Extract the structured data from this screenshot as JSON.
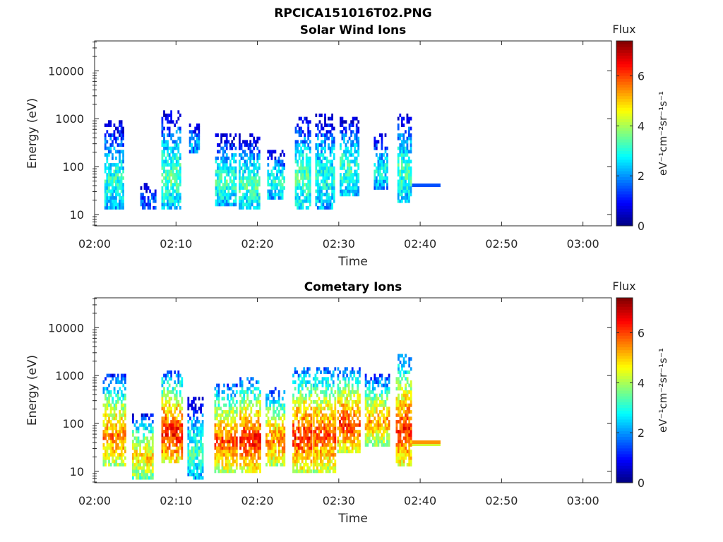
{
  "figure": {
    "title": "RPCICA151016T02.PNG"
  },
  "chart_data": [
    {
      "type": "heatmap",
      "title": "Solar Wind Ions",
      "xlabel": "Time",
      "ylabel": "Energy (eV)",
      "x_ticks": [
        "02:00",
        "02:10",
        "02:20",
        "02:30",
        "02:40",
        "02:50",
        "03:00"
      ],
      "y_ticks": [
        "10",
        "100",
        "1000",
        "10000"
      ],
      "y_scale": "log",
      "ylim": [
        5.8,
        42000
      ],
      "xlim_minutes": [
        0,
        63.5
      ],
      "colorbar": {
        "label": "Flux",
        "units": "eV⁻¹cm⁻²sr⁻¹s⁻¹",
        "ticks": [
          "0",
          "2",
          "4",
          "6"
        ],
        "range": [
          0,
          7.4
        ],
        "colormap": "jet"
      },
      "legend": "none",
      "grid": false,
      "bursts": [
        {
          "t_start": 1.2,
          "t_end": 3.6,
          "e_low": 12,
          "e_high": 800,
          "flux_peak": 3.1
        },
        {
          "t_start": 5.6,
          "t_end": 7.4,
          "e_low": 12,
          "e_high": 40,
          "flux_peak": 1.6
        },
        {
          "t_start": 8.2,
          "t_end": 10.6,
          "e_low": 12,
          "e_high": 1300,
          "flux_peak": 3.4
        },
        {
          "t_start": 11.6,
          "t_end": 12.8,
          "e_low": 200,
          "e_high": 700,
          "flux_peak": 2.5
        },
        {
          "t_start": 14.8,
          "t_end": 17.3,
          "e_low": 15,
          "e_high": 400,
          "flux_peak": 3.2
        },
        {
          "t_start": 17.7,
          "t_end": 20.2,
          "e_low": 12,
          "e_high": 400,
          "flux_peak": 3.3
        },
        {
          "t_start": 21.2,
          "t_end": 23.2,
          "e_low": 20,
          "e_high": 200,
          "flux_peak": 3.0
        },
        {
          "t_start": 24.6,
          "t_end": 26.4,
          "e_low": 12,
          "e_high": 1000,
          "flux_peak": 3.4
        },
        {
          "t_start": 27.1,
          "t_end": 29.4,
          "e_low": 12,
          "e_high": 1200,
          "flux_peak": 3.0
        },
        {
          "t_start": 30.1,
          "t_end": 32.3,
          "e_low": 25,
          "e_high": 1000,
          "flux_peak": 3.2
        },
        {
          "t_start": 34.3,
          "t_end": 36.0,
          "e_low": 35,
          "e_high": 400,
          "flux_peak": 2.9
        },
        {
          "t_start": 37.2,
          "t_end": 38.8,
          "e_low": 18,
          "e_high": 1100,
          "flux_peak": 3.3
        }
      ],
      "band": {
        "t_start": 39.0,
        "t_end": 42.5,
        "energy": 40,
        "flux": 1.5
      }
    },
    {
      "type": "heatmap",
      "title": "Cometary Ions",
      "xlabel": "Time",
      "ylabel": "Energy (eV)",
      "x_ticks": [
        "02:00",
        "02:10",
        "02:20",
        "02:30",
        "02:40",
        "02:50",
        "03:00"
      ],
      "y_ticks": [
        "10",
        "100",
        "1000",
        "10000"
      ],
      "y_scale": "log",
      "ylim": [
        5.8,
        42000
      ],
      "xlim_minutes": [
        0,
        63.5
      ],
      "colorbar": {
        "label": "Flux",
        "units": "eV⁻¹cm⁻²sr⁻¹s⁻¹",
        "ticks": [
          "0",
          "2",
          "4",
          "6"
        ],
        "range": [
          0,
          7.4
        ],
        "colormap": "jet"
      },
      "legend": "none",
      "grid": false,
      "bursts": [
        {
          "t_start": 1.0,
          "t_end": 3.8,
          "e_low": 12,
          "e_high": 900,
          "flux_peak": 5.6
        },
        {
          "t_start": 4.6,
          "t_end": 7.2,
          "e_low": 7,
          "e_high": 140,
          "flux_peak": 5.0
        },
        {
          "t_start": 8.2,
          "t_end": 10.8,
          "e_low": 14,
          "e_high": 1100,
          "flux_peak": 6.4
        },
        {
          "t_start": 11.4,
          "t_end": 13.2,
          "e_low": 7,
          "e_high": 300,
          "flux_peak": 3.2
        },
        {
          "t_start": 14.7,
          "t_end": 17.4,
          "e_low": 10,
          "e_high": 600,
          "flux_peak": 6.0
        },
        {
          "t_start": 17.8,
          "t_end": 20.3,
          "e_low": 10,
          "e_high": 800,
          "flux_peak": 6.4
        },
        {
          "t_start": 21.0,
          "t_end": 23.4,
          "e_low": 12,
          "e_high": 500,
          "flux_peak": 5.6
        },
        {
          "t_start": 24.3,
          "t_end": 26.5,
          "e_low": 10,
          "e_high": 1300,
          "flux_peak": 6.3
        },
        {
          "t_start": 26.8,
          "t_end": 29.6,
          "e_low": 10,
          "e_high": 1400,
          "flux_peak": 6.0
        },
        {
          "t_start": 29.8,
          "t_end": 32.6,
          "e_low": 25,
          "e_high": 1300,
          "flux_peak": 6.2
        },
        {
          "t_start": 33.2,
          "t_end": 36.2,
          "e_low": 35,
          "e_high": 900,
          "flux_peak": 5.4
        },
        {
          "t_start": 37.0,
          "t_end": 38.9,
          "e_low": 12,
          "e_high": 2500,
          "flux_peak": 6.2
        }
      ],
      "band": {
        "t_start": 39.0,
        "t_end": 42.5,
        "energy": 40,
        "flux": 5.4
      }
    }
  ]
}
